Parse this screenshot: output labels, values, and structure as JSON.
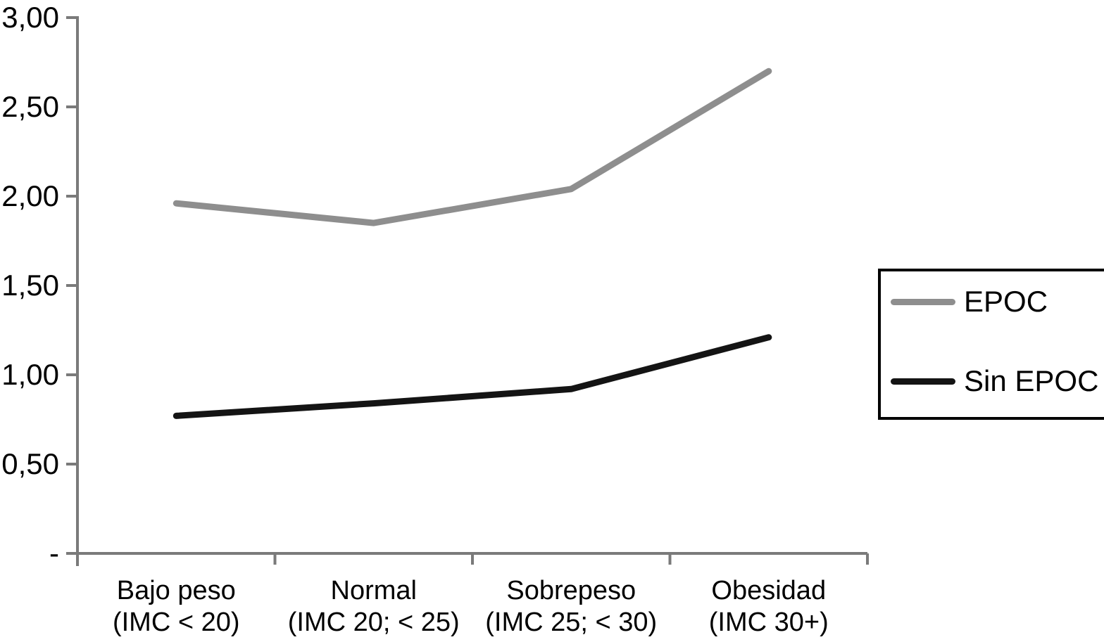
{
  "chart_data": {
    "type": "line",
    "categories": [
      "Bajo peso (IMC < 20)",
      "Normal (IMC 20; < 25)",
      "Sobrepeso (IMC 25; < 30)",
      "Obesidad (IMC 30+)"
    ],
    "category_label_lines": [
      [
        "Bajo peso",
        "(IMC < 20)"
      ],
      [
        "Normal",
        "(IMC 20; < 25)"
      ],
      [
        "Sobrepeso",
        "(IMC 25; < 30)"
      ],
      [
        "Obesidad",
        "(IMC 30+)"
      ]
    ],
    "series": [
      {
        "name": "EPOC",
        "color": "#8e8e8e",
        "values": [
          1.96,
          1.85,
          2.04,
          2.7
        ]
      },
      {
        "name": "Sin EPOC",
        "color": "#141414",
        "values": [
          0.77,
          0.84,
          0.92,
          1.21
        ]
      }
    ],
    "title": "",
    "xlabel": "",
    "ylabel": "",
    "ylim": [
      0,
      3
    ],
    "ytick_step": 0.5,
    "ytick_labels": [
      "3,00",
      "2,50",
      "2,00",
      "1,50",
      "1,00",
      "0,50",
      "-"
    ],
    "decimal_separator": ",",
    "grid": false,
    "legend_position": "right",
    "axis_color": "#7a7a7a",
    "text_color": "#000000",
    "background": "#ffffff"
  }
}
